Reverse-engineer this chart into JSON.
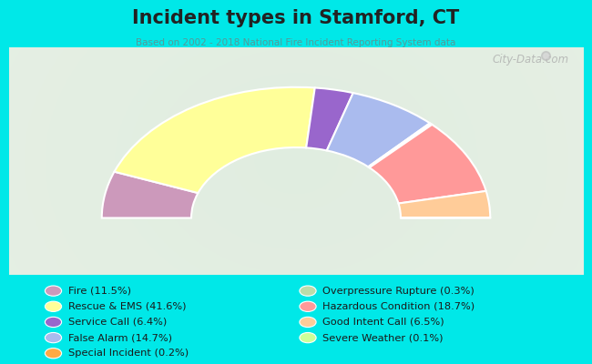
{
  "title": "Incident types in Stamford, CT",
  "subtitle": "Based on 2002 - 2018 National Fire Incident Reporting System data",
  "bg_cyan": "#00e8e8",
  "chart_bg": "#e8f0e0",
  "categories": [
    "Fire",
    "Rescue & EMS",
    "Service Call",
    "False Alarm",
    "Special Incident",
    "Overpressure Rupture",
    "Hazardous Condition",
    "Good Intent Call",
    "Severe Weather"
  ],
  "values": [
    11.5,
    41.6,
    6.4,
    14.7,
    0.2,
    0.3,
    18.7,
    6.5,
    0.1
  ],
  "colors": [
    "#cc99bb",
    "#ffff99",
    "#9966cc",
    "#aabbee",
    "#ffaa44",
    "#bbddaa",
    "#ff9999",
    "#ffcc99",
    "#ccff99"
  ],
  "legend_labels": [
    "Fire (11.5%)",
    "Rescue & EMS (41.6%)",
    "Service Call (6.4%)",
    "False Alarm (14.7%)",
    "Special Incident (0.2%)",
    "Overpressure Rupture (0.3%)",
    "Hazardous Condition (18.7%)",
    "Good Intent Call (6.5%)",
    "Severe Weather (0.1%)"
  ],
  "watermark": "City-Data.com",
  "outer_r": 1.15,
  "inner_r": 0.62
}
